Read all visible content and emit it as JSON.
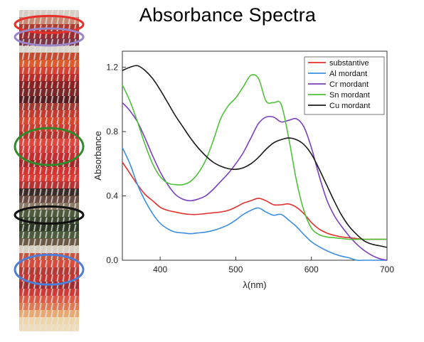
{
  "page": {
    "title": "Absorbance Spectra"
  },
  "swatch_strip": {
    "colors": [
      "#d8cfc4",
      "#c98a72",
      "#b0392e",
      "#9b2a30",
      "#7d3545",
      "#d9d6cc",
      "#c74a2e",
      "#e05a2a",
      "#d64232",
      "#b92c27",
      "#8c1f22",
      "#7a2526",
      "#5a1c1e",
      "#a3382e",
      "#c43a2d",
      "#d9452b",
      "#cf3b2f",
      "#b5312a",
      "#e0463c",
      "#d63a37",
      "#c72d2f",
      "#a92628",
      "#d5322e",
      "#e03a34",
      "#b73230",
      "#3a2b28",
      "#6b4a3f",
      "#8a7a66",
      "#4f5a3c",
      "#3c4a30",
      "#2f3a26",
      "#4b5a3a",
      "#6a5a44",
      "#d8cfc0",
      "#c9543b",
      "#d84a3a",
      "#b63a33",
      "#c43530",
      "#a52c2e",
      "#cf3a35",
      "#de5a45",
      "#e07a55",
      "#e8a870",
      "#efd5a8",
      "#f0dcb8"
    ],
    "circles": [
      {
        "color": "#e8302a",
        "pos": 0.045
      },
      {
        "color": "#9a86c8",
        "pos": 0.084
      },
      {
        "color": "#2f8a2a",
        "pos": 0.425
      },
      {
        "color": "#111111",
        "pos": 0.638
      },
      {
        "color": "#4e7fd8",
        "pos": 0.808
      }
    ]
  },
  "chart_data": {
    "type": "line",
    "title": "",
    "xlabel": "λ(nm)",
    "ylabel": "Absorbance",
    "xlim": [
      350,
      700
    ],
    "ylim": [
      0.0,
      1.3
    ],
    "xticks": [
      400,
      500,
      600,
      700
    ],
    "yticks": [
      0.0,
      0.4,
      0.8,
      1.2
    ],
    "xtick_labels": [
      "400",
      "500",
      "600",
      "700"
    ],
    "ytick_labels": [
      "0.0",
      "0.4",
      "0.8",
      "1.2"
    ],
    "grid": false,
    "legend_position": "top-right",
    "series": [
      {
        "name": "substantive",
        "color": "#e0312c",
        "x": [
          350,
          360,
          370,
          380,
          390,
          400,
          410,
          420,
          430,
          440,
          450,
          460,
          470,
          480,
          490,
          500,
          510,
          520,
          530,
          540,
          550,
          560,
          570,
          580,
          590,
          600,
          610,
          620,
          630,
          640,
          650,
          660,
          670,
          680,
          690,
          700
        ],
        "y": [
          0.61,
          0.54,
          0.47,
          0.41,
          0.37,
          0.33,
          0.31,
          0.3,
          0.29,
          0.285,
          0.285,
          0.29,
          0.295,
          0.3,
          0.31,
          0.33,
          0.355,
          0.37,
          0.385,
          0.37,
          0.345,
          0.345,
          0.35,
          0.33,
          0.29,
          0.235,
          0.195,
          0.17,
          0.155,
          0.145,
          0.14,
          0.135,
          0.13,
          0.13,
          0.13,
          0.13
        ]
      },
      {
        "name": "Al mordant",
        "color": "#3b8ee0",
        "x": [
          350,
          360,
          370,
          380,
          390,
          400,
          410,
          420,
          430,
          440,
          450,
          460,
          470,
          480,
          490,
          500,
          510,
          520,
          530,
          540,
          550,
          560,
          570,
          580,
          590,
          600,
          610,
          620,
          630,
          640,
          650,
          660,
          670,
          680,
          690,
          700
        ],
        "y": [
          0.7,
          0.6,
          0.47,
          0.37,
          0.29,
          0.23,
          0.195,
          0.175,
          0.17,
          0.165,
          0.17,
          0.175,
          0.185,
          0.2,
          0.22,
          0.25,
          0.285,
          0.31,
          0.325,
          0.3,
          0.28,
          0.285,
          0.25,
          0.21,
          0.16,
          0.115,
          0.085,
          0.06,
          0.04,
          0.025,
          0.015,
          0.0,
          0.0,
          0.0,
          0.0,
          0.0
        ]
      },
      {
        "name": "Cr mordant",
        "color": "#7a3fbf",
        "x": [
          350,
          360,
          370,
          380,
          390,
          400,
          410,
          420,
          430,
          440,
          450,
          460,
          470,
          480,
          490,
          500,
          510,
          520,
          530,
          540,
          550,
          560,
          570,
          580,
          590,
          600,
          610,
          620,
          630,
          640,
          650,
          660,
          670,
          680,
          690,
          700
        ],
        "y": [
          0.98,
          0.93,
          0.86,
          0.76,
          0.65,
          0.55,
          0.47,
          0.41,
          0.38,
          0.37,
          0.38,
          0.4,
          0.44,
          0.49,
          0.54,
          0.6,
          0.67,
          0.76,
          0.85,
          0.89,
          0.89,
          0.86,
          0.87,
          0.88,
          0.83,
          0.7,
          0.53,
          0.38,
          0.28,
          0.21,
          0.15,
          0.1,
          0.06,
          0.03,
          0.01,
          0.0
        ]
      },
      {
        "name": "Sn mordant",
        "color": "#4fc23a",
        "x": [
          350,
          360,
          370,
          380,
          390,
          400,
          410,
          420,
          430,
          440,
          450,
          460,
          470,
          480,
          490,
          500,
          510,
          520,
          530,
          540,
          550,
          560,
          570,
          580,
          590,
          600,
          610,
          620,
          630,
          640,
          650,
          660,
          670,
          680,
          690,
          700
        ],
        "y": [
          1.09,
          0.99,
          0.86,
          0.72,
          0.6,
          0.52,
          0.48,
          0.47,
          0.47,
          0.49,
          0.54,
          0.62,
          0.74,
          0.88,
          0.96,
          1.01,
          1.08,
          1.15,
          1.13,
          0.99,
          0.98,
          0.97,
          0.76,
          0.5,
          0.31,
          0.2,
          0.16,
          0.145,
          0.14,
          0.135,
          0.13,
          0.13,
          0.13,
          0.13,
          0.13,
          0.13
        ]
      },
      {
        "name": "Cu mordant",
        "color": "#1a1a1a",
        "x": [
          350,
          360,
          370,
          380,
          390,
          400,
          410,
          420,
          430,
          440,
          450,
          460,
          470,
          480,
          490,
          500,
          510,
          520,
          530,
          540,
          550,
          560,
          570,
          580,
          590,
          600,
          610,
          620,
          630,
          640,
          650,
          660,
          670,
          680,
          690,
          700
        ],
        "y": [
          1.18,
          1.2,
          1.21,
          1.18,
          1.13,
          1.06,
          0.98,
          0.9,
          0.83,
          0.76,
          0.7,
          0.65,
          0.61,
          0.585,
          0.57,
          0.565,
          0.575,
          0.6,
          0.64,
          0.69,
          0.73,
          0.75,
          0.76,
          0.75,
          0.72,
          0.66,
          0.57,
          0.47,
          0.37,
          0.28,
          0.21,
          0.16,
          0.12,
          0.1,
          0.09,
          0.08
        ]
      }
    ]
  }
}
